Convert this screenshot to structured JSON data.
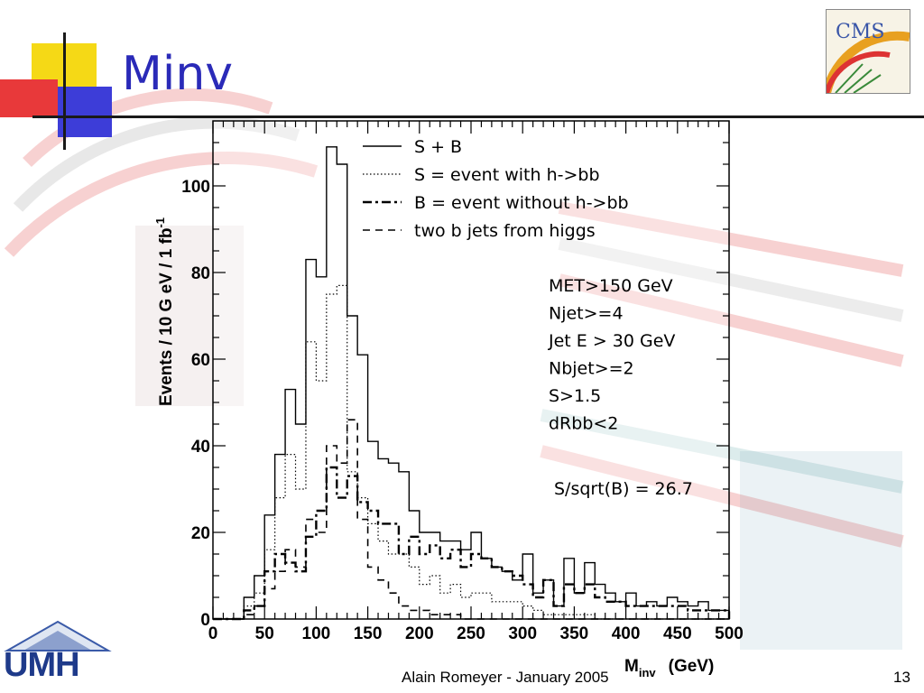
{
  "slide": {
    "title": "Minv",
    "footer": "Alain Romeyer - January 2005",
    "page_number": "13",
    "logos": {
      "cms": "CMS",
      "umh": "UMH"
    }
  },
  "colors": {
    "title": "#2a2ab8",
    "accent_yellow": "#f5d916",
    "accent_red": "#e8393a",
    "accent_blue": "#3d3dd8"
  },
  "chart_data": {
    "type": "line",
    "xlabel_main": "M",
    "xlabel_sub": "inv",
    "xlabel_unit": "(GeV)",
    "ylabel": "Events /    10 G eV /    1  fb",
    "ylabel_sup": "-1",
    "xlim": [
      0,
      500
    ],
    "ylim": [
      0,
      115
    ],
    "xticks": [
      "0",
      "50",
      "100",
      "150",
      "200",
      "250",
      "300",
      "350",
      "400",
      "450",
      "500"
    ],
    "yticks": [
      "0",
      "20",
      "40",
      "60",
      "80",
      "100"
    ],
    "bin_edges": [
      0,
      10,
      20,
      30,
      40,
      50,
      60,
      70,
      80,
      90,
      100,
      110,
      120,
      130,
      140,
      150,
      160,
      170,
      180,
      190,
      200,
      210,
      220,
      230,
      240,
      250,
      260,
      270,
      280,
      290,
      300,
      310,
      320,
      330,
      340,
      350,
      360,
      370,
      380,
      390,
      400,
      410,
      420,
      430,
      440,
      450,
      460,
      470,
      480,
      490,
      500
    ],
    "series": [
      {
        "name": "S + B",
        "style": "solid",
        "values": [
          0,
          0,
          0,
          5,
          10,
          24,
          38,
          53,
          45,
          83,
          79,
          109,
          105,
          70,
          61,
          41,
          37,
          36,
          34,
          25,
          20,
          20,
          18,
          18,
          16,
          20,
          14,
          12,
          11,
          9,
          15,
          6,
          9,
          3,
          14,
          6,
          13,
          8,
          6,
          4,
          6,
          3,
          4,
          3,
          5,
          4,
          3,
          4,
          2,
          2
        ]
      },
      {
        "name": "S = event with h->bb",
        "style": "dotted",
        "values": [
          0,
          0,
          0,
          3,
          6,
          16,
          28,
          38,
          30,
          64,
          55,
          75,
          77,
          34,
          28,
          22,
          18,
          15,
          15,
          12,
          8,
          10,
          6,
          8,
          5,
          6,
          6,
          4,
          4,
          4,
          3,
          2,
          1,
          1,
          1,
          1,
          1,
          0,
          0,
          0,
          0,
          0,
          0,
          0,
          0,
          0,
          0,
          0,
          0,
          0
        ]
      },
      {
        "name": "B = event without h->bb",
        "style": "dashdot",
        "values": [
          0,
          0,
          0,
          2,
          3,
          11,
          15,
          13,
          11,
          19,
          25,
          35,
          28,
          33,
          27,
          25,
          22,
          22,
          15,
          19,
          15,
          17,
          14,
          16,
          12,
          15,
          14,
          12,
          11,
          10,
          8,
          5,
          9,
          3,
          8,
          6,
          8,
          5,
          4,
          4,
          3,
          3,
          3,
          3,
          3,
          3,
          2,
          2,
          2,
          2
        ]
      },
      {
        "name": "two b jets from higgs",
        "style": "dashed",
        "values": [
          0,
          0,
          0,
          1,
          3,
          7,
          11,
          16,
          12,
          23,
          20,
          40,
          36,
          46,
          23,
          12,
          9,
          6,
          3,
          2,
          2,
          1,
          1,
          1,
          0,
          0,
          0,
          0,
          0,
          0,
          0,
          0,
          0,
          0,
          0,
          0,
          0,
          0,
          0,
          0,
          0,
          0,
          0,
          0,
          0,
          0,
          0,
          0,
          0,
          0
        ]
      }
    ],
    "annotations": [
      "MET>150 GeV",
      "Njet>=4",
      "Jet E > 30 GeV",
      "Nbjet>=2",
      "S>1.5",
      "dRbb<2"
    ],
    "significance": "S/sqrt(B) = 26.7",
    "legend_placement": "top-center"
  }
}
